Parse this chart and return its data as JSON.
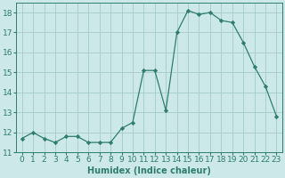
{
  "x": [
    0,
    1,
    2,
    3,
    4,
    5,
    6,
    7,
    8,
    9,
    10,
    11,
    12,
    13,
    14,
    15,
    16,
    17,
    18,
    19,
    20,
    21,
    22,
    23
  ],
  "y": [
    11.7,
    12.0,
    11.7,
    11.5,
    11.8,
    11.8,
    11.5,
    11.5,
    11.5,
    12.2,
    12.5,
    15.1,
    15.1,
    13.1,
    17.0,
    18.1,
    17.9,
    18.0,
    17.6,
    17.5,
    16.5,
    15.3,
    14.3,
    12.8
  ],
  "line_color": "#2e7d6e",
  "marker": "D",
  "marker_size": 2.2,
  "bg_color": "#cce8e8",
  "grid_color": "#aacece",
  "xlabel": "Humidex (Indice chaleur)",
  "ylim": [
    11,
    18.5
  ],
  "xlim": [
    -0.5,
    23.5
  ],
  "yticks": [
    11,
    12,
    13,
    14,
    15,
    16,
    17,
    18
  ],
  "xticks": [
    0,
    1,
    2,
    3,
    4,
    5,
    6,
    7,
    8,
    9,
    10,
    11,
    12,
    13,
    14,
    15,
    16,
    17,
    18,
    19,
    20,
    21,
    22,
    23
  ],
  "xlabel_fontsize": 7,
  "tick_fontsize": 6.5
}
